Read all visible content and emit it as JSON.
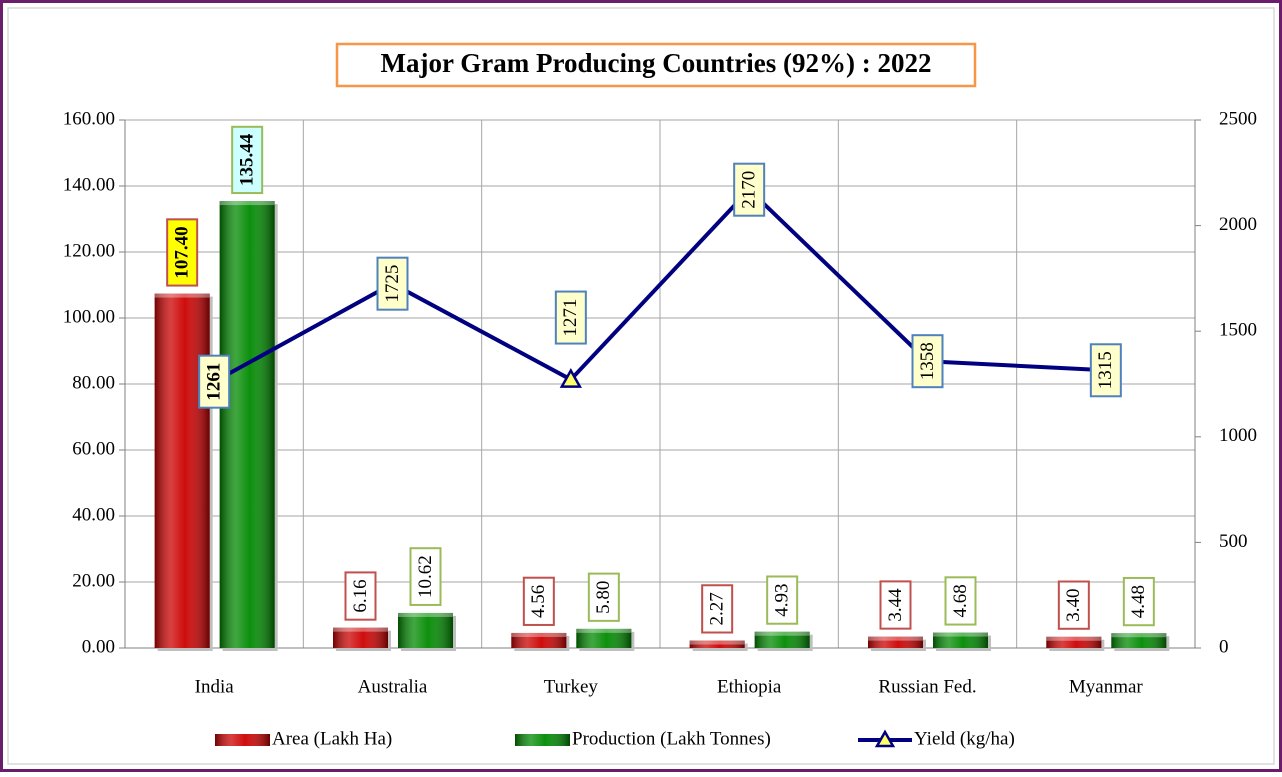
{
  "chart_data": {
    "type": "bar-line",
    "title": "Major Gram Producing Countries (92%) : 2022",
    "categories": [
      "India",
      "Australia",
      "Turkey",
      "Ethiopia",
      "Russian Fed.",
      "Myanmar"
    ],
    "series": [
      {
        "name": "Area (Lakh Ha)",
        "type": "bar",
        "color": "#cc0000",
        "label_border": "#c0504d",
        "values": [
          107.4,
          6.16,
          4.56,
          2.27,
          3.44,
          3.4
        ],
        "value_labels": [
          "107.40",
          "6.16",
          "4.56",
          "2.27",
          "3.44",
          "3.40"
        ]
      },
      {
        "name": "Production (Lakh Tonnes)",
        "type": "bar",
        "color": "#008a00",
        "label_border": "#9bbb59",
        "values": [
          135.44,
          10.62,
          5.8,
          4.93,
          4.68,
          4.48
        ],
        "value_labels": [
          "135.44",
          "10.62",
          "5.80",
          "4.93",
          "4.68",
          "4.48"
        ]
      },
      {
        "name": "Yield (kg/ha)",
        "type": "line",
        "axis": "y2",
        "color": "#000080",
        "label_border": "#4f81bd",
        "values": [
          1261,
          1725,
          1271,
          2170,
          1358,
          1315
        ]
      }
    ],
    "ylim": [
      0,
      160
    ],
    "yticks": [
      {
        "value": 0,
        "label": "0.00"
      },
      {
        "value": 20,
        "label": "20.00"
      },
      {
        "value": 40,
        "label": "40.00"
      },
      {
        "value": 60,
        "label": "60.00"
      },
      {
        "value": 80,
        "label": "80.00"
      },
      {
        "value": 100,
        "label": "100.00"
      },
      {
        "value": 120,
        "label": "120.00"
      },
      {
        "value": 140,
        "label": "140.00"
      },
      {
        "value": 160,
        "label": "160.00"
      }
    ],
    "y2lim": [
      0,
      2500
    ],
    "y2ticks": [
      0,
      500,
      1000,
      1500,
      2000,
      2500
    ],
    "grid": true
  }
}
